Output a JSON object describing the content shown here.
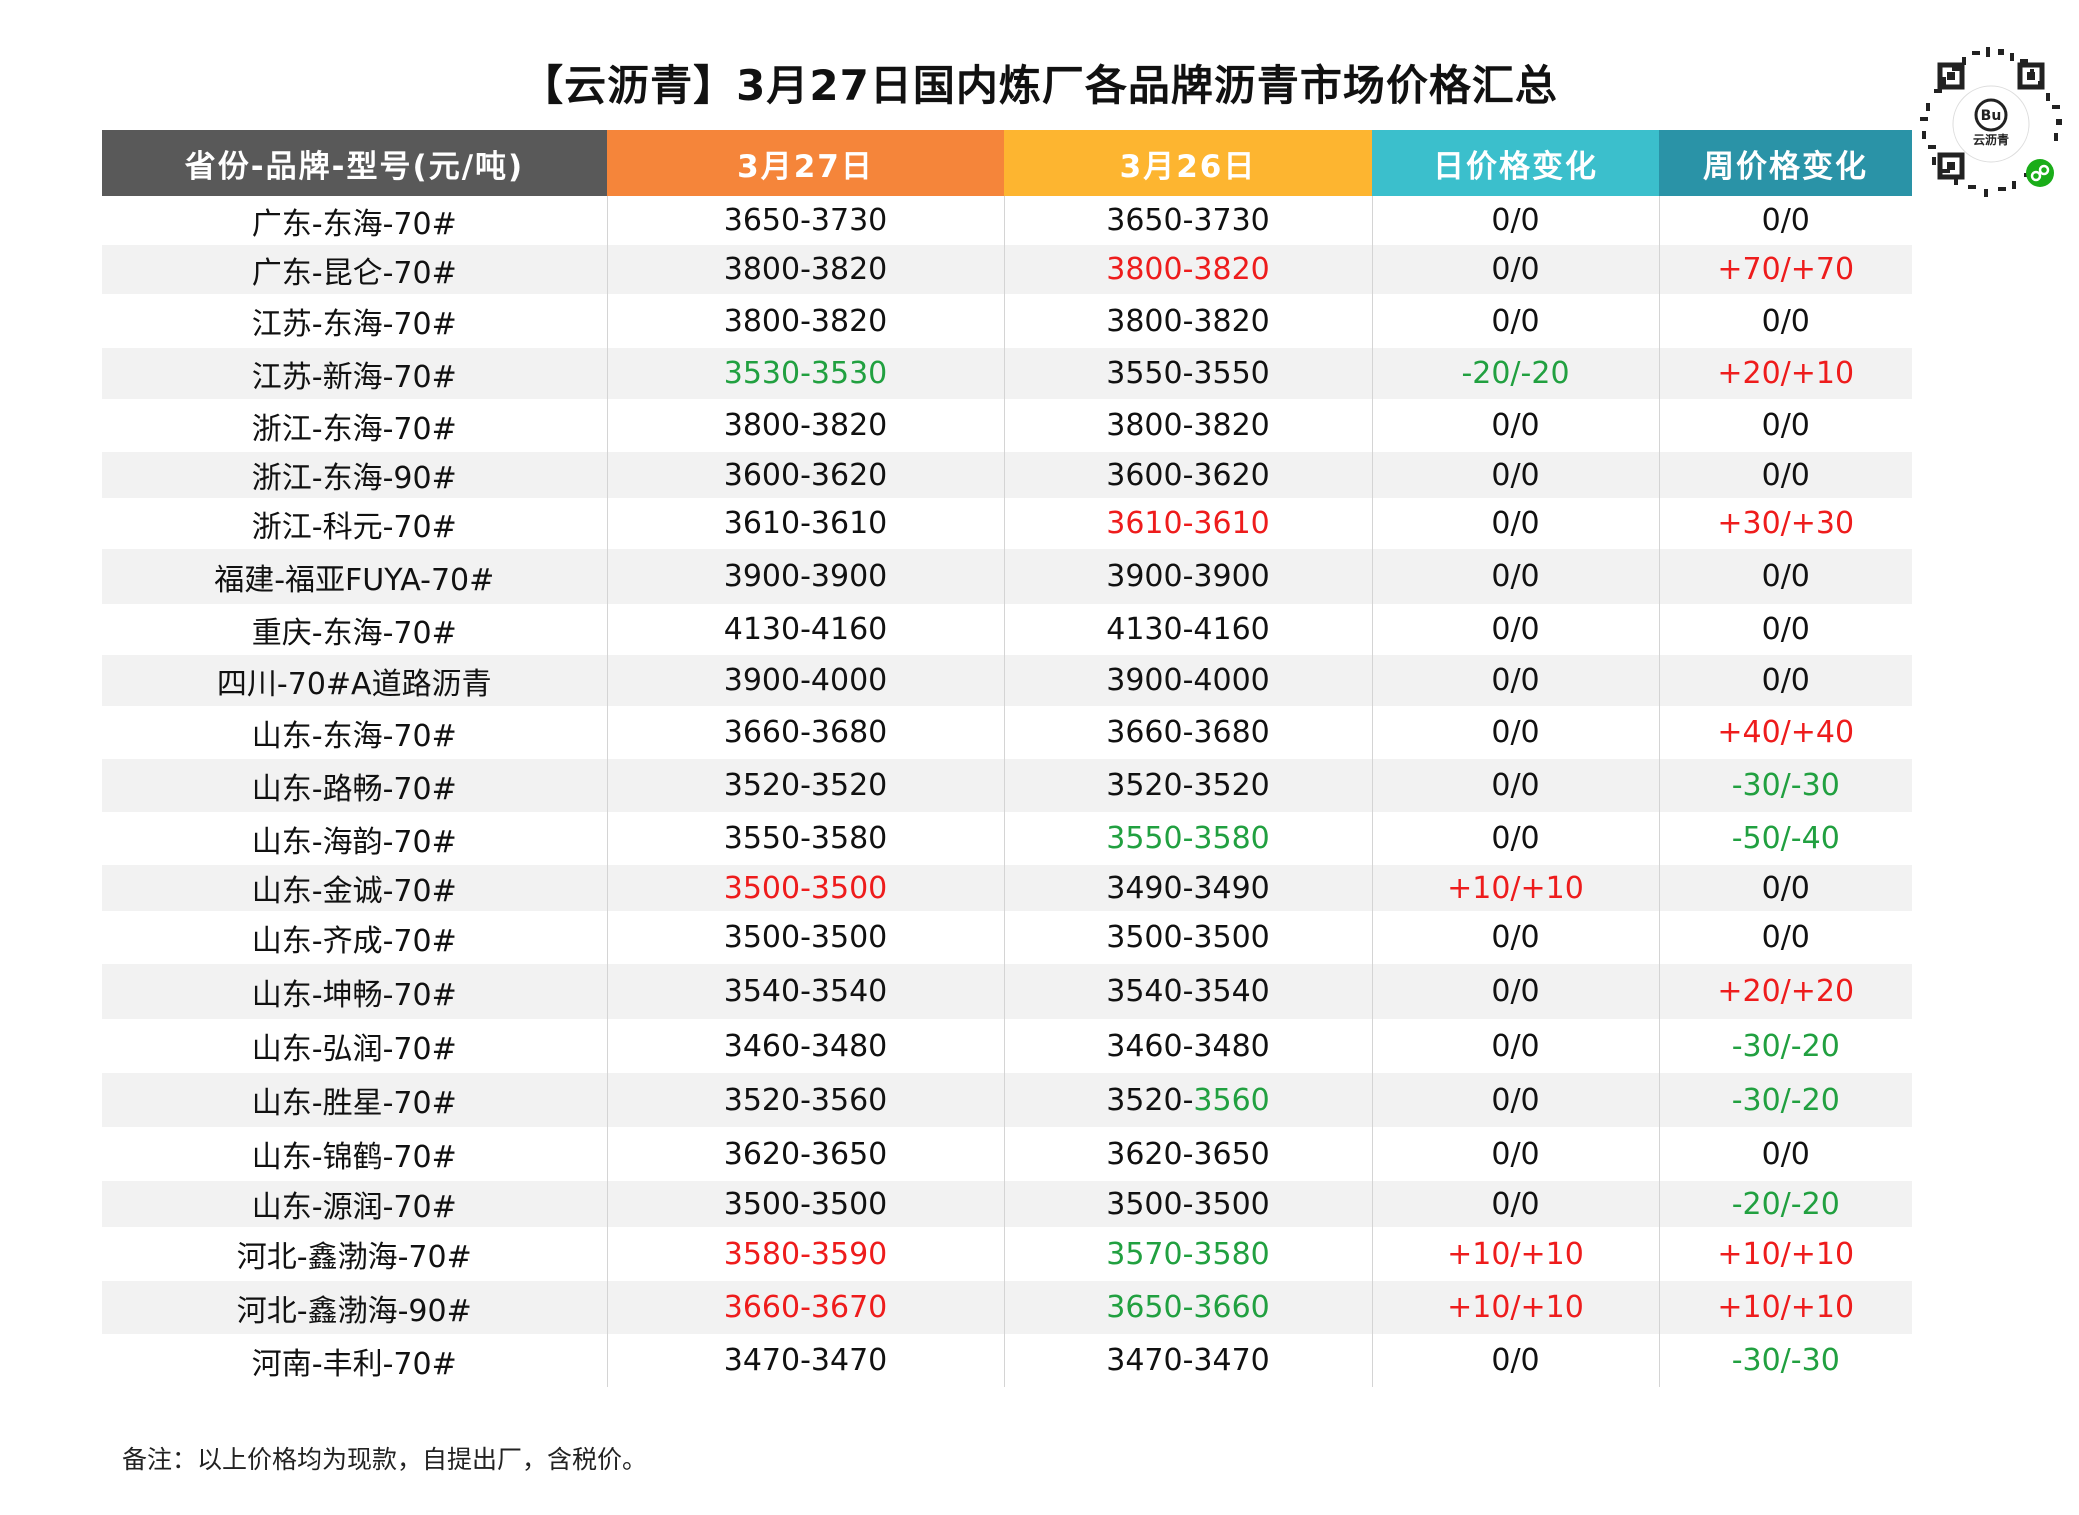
{
  "title": "【云沥青】3月27日国内炼厂各品牌沥青市场价格汇总",
  "qr_label": "云沥青",
  "colors": {
    "header_col1": "#595959",
    "header_col2": "#f5853a",
    "header_col3": "#fdb530",
    "header_col4": "#3bbfcc",
    "header_col5": "#2a93a7",
    "up": "#ee1c1c",
    "down": "#21a040",
    "normal": "#111111"
  },
  "table": {
    "headers": [
      "省份-品牌-型号(元/吨)",
      "3月27日",
      "3月26日",
      "日价格变化",
      "周价格变化"
    ],
    "rows": [
      {
        "name": "广东-东海-70#",
        "today": "3650-3730",
        "prev": "3650-3730",
        "day": "0/0",
        "week": "0/0"
      },
      {
        "name": "广东-昆仑-70#",
        "today": "3800-3820",
        "prev": "3800-3820",
        "day": "0/0",
        "week": "+70/+70"
      },
      {
        "name": "江苏-东海-70#",
        "today": "3800-3820",
        "prev": "3800-3820",
        "day": "0/0",
        "week": "0/0"
      },
      {
        "name": "江苏-新海-70#",
        "today": "3530-3530",
        "prev": "3550-3550",
        "day": "-20/-20",
        "week": "+20/+10"
      },
      {
        "name": "浙江-东海-70#",
        "today": "3800-3820",
        "prev": "3800-3820",
        "day": "0/0",
        "week": "0/0"
      },
      {
        "name": "浙江-东海-90#",
        "today": "3600-3620",
        "prev": "3600-3620",
        "day": "0/0",
        "week": "0/0"
      },
      {
        "name": "浙江-科元-70#",
        "today": "3610-3610",
        "prev": "3610-3610",
        "day": "0/0",
        "week": "+30/+30"
      },
      {
        "name": "福建-福亚FUYA-70#",
        "today": "3900-3900",
        "prev": "3900-3900",
        "day": "0/0",
        "week": "0/0"
      },
      {
        "name": "重庆-东海-70#",
        "today": "4130-4160",
        "prev": "4130-4160",
        "day": "0/0",
        "week": "0/0"
      },
      {
        "name": "四川-70#A道路沥青",
        "today": "3900-4000",
        "prev": "3900-4000",
        "day": "0/0",
        "week": "0/0"
      },
      {
        "name": "山东-东海-70#",
        "today": "3660-3680",
        "prev": "3660-3680",
        "day": "0/0",
        "week": "+40/+40"
      },
      {
        "name": "山东-路畅-70#",
        "today": "3520-3520",
        "prev": "3520-3520",
        "day": "0/0",
        "week": "-30/-30"
      },
      {
        "name": "山东-海韵-70#",
        "today": "3550-3580",
        "prev": "3550-3580",
        "day": "0/0",
        "week": "-50/-40"
      },
      {
        "name": "山东-金诚-70#",
        "today": "3500-3500",
        "prev": "3490-3490",
        "day": "+10/+10",
        "week": "0/0"
      },
      {
        "name": "山东-齐成-70#",
        "today": "3500-3500",
        "prev": "3500-3500",
        "day": "0/0",
        "week": "0/0"
      },
      {
        "name": "山东-坤畅-70#",
        "today": "3540-3540",
        "prev": "3540-3540",
        "day": "0/0",
        "week": "+20/+20"
      },
      {
        "name": "山东-弘润-70#",
        "today": "3460-3480",
        "prev": "3460-3480",
        "day": "0/0",
        "week": "-30/-20"
      },
      {
        "name": "山东-胜星-70#",
        "today": "3520-3560",
        "prev_a": "3520-",
        "prev_b": "3560",
        "day": "0/0",
        "week": "-30/-20"
      },
      {
        "name": "山东-锦鹤-70#",
        "today": "3620-3650",
        "prev": "3620-3650",
        "day": "0/0",
        "week": "0/0"
      },
      {
        "name": "山东-源润-70#",
        "today": "3500-3500",
        "prev": "3500-3500",
        "day": "0/0",
        "week": "-20/-20"
      },
      {
        "name": "河北-鑫渤海-70#",
        "today": "3580-3590",
        "prev": "3570-3580",
        "day": "+10/+10",
        "week": "+10/+10"
      },
      {
        "name": "河北-鑫渤海-90#",
        "today": "3660-3670",
        "prev": "3650-3660",
        "day": "+10/+10",
        "week": "+10/+10"
      },
      {
        "name": "河南-丰利-70#",
        "today": "3470-3470",
        "prev": "3470-3470",
        "day": "0/0",
        "week": "-30/-30"
      }
    ]
  },
  "note": "备注：以上价格均为现款，自提出厂，含税价。"
}
